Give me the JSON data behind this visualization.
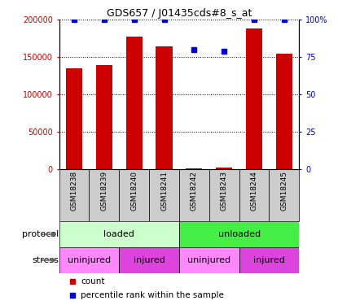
{
  "title": "GDS657 / J01435cds#8_s_at",
  "samples": [
    "GSM18238",
    "GSM18239",
    "GSM18240",
    "GSM18241",
    "GSM18242",
    "GSM18243",
    "GSM18244",
    "GSM18245"
  ],
  "counts": [
    135000,
    140000,
    178000,
    165000,
    2000,
    2500,
    188000,
    155000
  ],
  "percentile_ranks": [
    100,
    100,
    100,
    100,
    80,
    79,
    100,
    100
  ],
  "ylim_left": [
    0,
    200000
  ],
  "ylim_right": [
    0,
    100
  ],
  "yticks_left": [
    0,
    50000,
    100000,
    150000,
    200000
  ],
  "ytick_labels_left": [
    "0",
    "50000",
    "100000",
    "150000",
    "200000"
  ],
  "yticks_right": [
    0,
    25,
    50,
    75,
    100
  ],
  "ytick_labels_right": [
    "0",
    "25",
    "50",
    "75",
    "100%"
  ],
  "bar_color": "#cc0000",
  "dot_color": "#0000cc",
  "sample_label_bg": "#cccccc",
  "protocol_loaded_color": "#ccffcc",
  "protocol_unloaded_color": "#44ee44",
  "stress_uninjured_color": "#ff88ff",
  "stress_injured_color": "#dd44dd",
  "protocol_label": "protocol",
  "stress_label": "stress",
  "legend_count_label": "count",
  "legend_percentile_label": "percentile rank within the sample",
  "protocol_groups": [
    {
      "label": "loaded",
      "start": 0,
      "end": 3
    },
    {
      "label": "unloaded",
      "start": 4,
      "end": 7
    }
  ],
  "stress_groups": [
    {
      "label": "uninjured",
      "start": 0,
      "end": 1
    },
    {
      "label": "injured",
      "start": 2,
      "end": 3
    },
    {
      "label": "uninjured",
      "start": 4,
      "end": 5
    },
    {
      "label": "injured",
      "start": 6,
      "end": 7
    }
  ]
}
